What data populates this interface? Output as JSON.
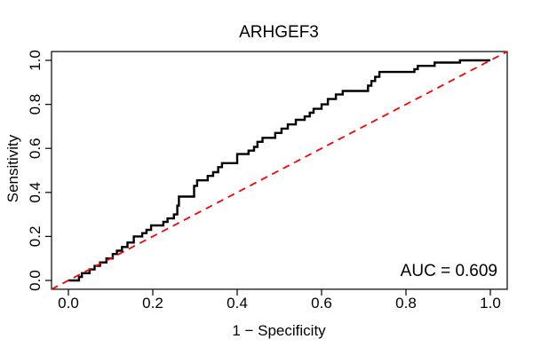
{
  "title": "ARHGEF3",
  "annotation": {
    "auc_label": "AUC = 0.609"
  },
  "colors": {
    "curve": "#000000",
    "diagonal": "#ff0000",
    "background": "#ffffff",
    "axis": "#000000"
  },
  "chart_data": {
    "type": "line",
    "title": "ARHGEF3",
    "xlabel": "1 − Specificity",
    "ylabel": "Sensitivity",
    "xlim": [
      -0.04,
      1.04
    ],
    "ylim": [
      -0.04,
      1.04
    ],
    "grid": false,
    "legend_position": "none",
    "auc": 0.609,
    "x_tick_values": [
      0.0,
      0.2,
      0.4,
      0.6,
      0.8,
      1.0
    ],
    "x_tick_labels": [
      "0.0",
      "0.2",
      "0.4",
      "0.6",
      "0.8",
      "1.0"
    ],
    "y_tick_values": [
      0.0,
      0.2,
      0.4,
      0.6,
      0.8,
      1.0
    ],
    "y_tick_labels": [
      "0.0",
      "0.2",
      "0.4",
      "0.6",
      "0.8",
      "1.0"
    ],
    "series": [
      {
        "name": "ROC curve",
        "color": "#000000",
        "style": "solid",
        "points": [
          [
            0,
            0
          ],
          [
            0.025,
            0
          ],
          [
            0.025,
            0.016
          ],
          [
            0.032,
            0.016
          ],
          [
            0.032,
            0.033
          ],
          [
            0.05,
            0.033
          ],
          [
            0.05,
            0.05
          ],
          [
            0.062,
            0.05
          ],
          [
            0.062,
            0.066
          ],
          [
            0.075,
            0.066
          ],
          [
            0.075,
            0.082
          ],
          [
            0.09,
            0.082
          ],
          [
            0.09,
            0.1
          ],
          [
            0.105,
            0.1
          ],
          [
            0.105,
            0.12
          ],
          [
            0.115,
            0.12
          ],
          [
            0.115,
            0.135
          ],
          [
            0.127,
            0.135
          ],
          [
            0.127,
            0.152
          ],
          [
            0.14,
            0.152
          ],
          [
            0.14,
            0.172
          ],
          [
            0.155,
            0.172
          ],
          [
            0.155,
            0.2
          ],
          [
            0.175,
            0.2
          ],
          [
            0.175,
            0.215
          ],
          [
            0.185,
            0.215
          ],
          [
            0.185,
            0.23
          ],
          [
            0.196,
            0.23
          ],
          [
            0.196,
            0.25
          ],
          [
            0.225,
            0.25
          ],
          [
            0.225,
            0.266
          ],
          [
            0.235,
            0.266
          ],
          [
            0.235,
            0.282
          ],
          [
            0.25,
            0.282
          ],
          [
            0.25,
            0.3
          ],
          [
            0.258,
            0.3
          ],
          [
            0.258,
            0.34
          ],
          [
            0.262,
            0.34
          ],
          [
            0.262,
            0.381
          ],
          [
            0.298,
            0.381
          ],
          [
            0.298,
            0.43
          ],
          [
            0.305,
            0.43
          ],
          [
            0.305,
            0.455
          ],
          [
            0.33,
            0.455
          ],
          [
            0.33,
            0.475
          ],
          [
            0.343,
            0.475
          ],
          [
            0.343,
            0.492
          ],
          [
            0.355,
            0.492
          ],
          [
            0.355,
            0.515
          ],
          [
            0.364,
            0.515
          ],
          [
            0.364,
            0.533
          ],
          [
            0.4,
            0.533
          ],
          [
            0.4,
            0.574
          ],
          [
            0.427,
            0.574
          ],
          [
            0.427,
            0.59
          ],
          [
            0.44,
            0.59
          ],
          [
            0.44,
            0.607
          ],
          [
            0.448,
            0.607
          ],
          [
            0.448,
            0.63
          ],
          [
            0.46,
            0.63
          ],
          [
            0.46,
            0.648
          ],
          [
            0.49,
            0.648
          ],
          [
            0.49,
            0.67
          ],
          [
            0.505,
            0.67
          ],
          [
            0.505,
            0.69
          ],
          [
            0.52,
            0.69
          ],
          [
            0.52,
            0.709
          ],
          [
            0.539,
            0.709
          ],
          [
            0.539,
            0.73
          ],
          [
            0.56,
            0.73
          ],
          [
            0.56,
            0.745
          ],
          [
            0.572,
            0.745
          ],
          [
            0.572,
            0.762
          ],
          [
            0.581,
            0.762
          ],
          [
            0.581,
            0.78
          ],
          [
            0.6,
            0.78
          ],
          [
            0.6,
            0.8
          ],
          [
            0.615,
            0.8
          ],
          [
            0.615,
            0.824
          ],
          [
            0.634,
            0.824
          ],
          [
            0.634,
            0.845
          ],
          [
            0.65,
            0.845
          ],
          [
            0.65,
            0.861
          ],
          [
            0.71,
            0.861
          ],
          [
            0.71,
            0.885
          ],
          [
            0.718,
            0.885
          ],
          [
            0.718,
            0.906
          ],
          [
            0.727,
            0.906
          ],
          [
            0.727,
            0.925
          ],
          [
            0.737,
            0.925
          ],
          [
            0.737,
            0.947
          ],
          [
            0.82,
            0.947
          ],
          [
            0.82,
            0.96
          ],
          [
            0.828,
            0.96
          ],
          [
            0.828,
            0.975
          ],
          [
            0.868,
            0.975
          ],
          [
            0.868,
            0.99
          ],
          [
            0.928,
            0.99
          ],
          [
            0.928,
            1
          ],
          [
            1,
            1
          ]
        ]
      },
      {
        "name": "chance line",
        "color": "#ff0000",
        "style": "dashed",
        "points": [
          [
            -0.04,
            -0.04
          ],
          [
            1.04,
            1.04
          ]
        ]
      }
    ]
  }
}
